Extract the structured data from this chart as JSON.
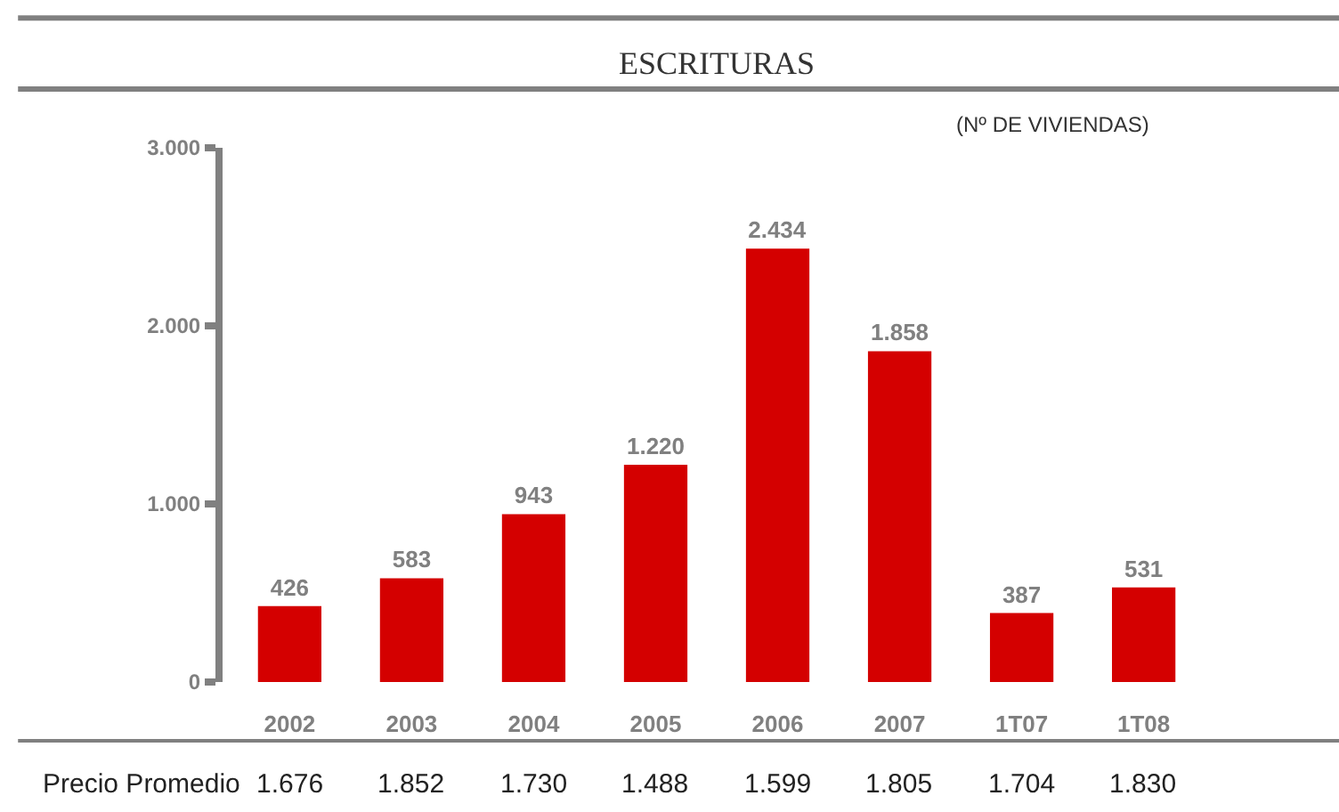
{
  "chart_data": {
    "type": "bar",
    "title": "ESCRITURAS",
    "subtitle": "(Nº DE VIVIENDAS)",
    "categories": [
      "2002",
      "2003",
      "2004",
      "2005",
      "2006",
      "2007",
      "1T07",
      "1T08"
    ],
    "values": [
      426,
      583,
      943,
      1220,
      2434,
      1858,
      387,
      531
    ],
    "value_labels": [
      "426",
      "583",
      "943",
      "1.220",
      "2.434",
      "1.858",
      "387",
      "531"
    ],
    "color": "#d40000",
    "ylim": [
      0,
      3000
    ],
    "yticks": [
      {
        "value": 0,
        "label": "0"
      },
      {
        "value": 1000,
        "label": "1.000"
      },
      {
        "value": 2000,
        "label": "2.000"
      },
      {
        "value": 3000,
        "label": "3.000"
      }
    ],
    "legend": false,
    "annotations": [
      "Precio Promedio",
      "1.676",
      "1.852",
      "1.730",
      "1.488",
      "1.599",
      "1.805",
      "1.704",
      "1.830"
    ]
  }
}
